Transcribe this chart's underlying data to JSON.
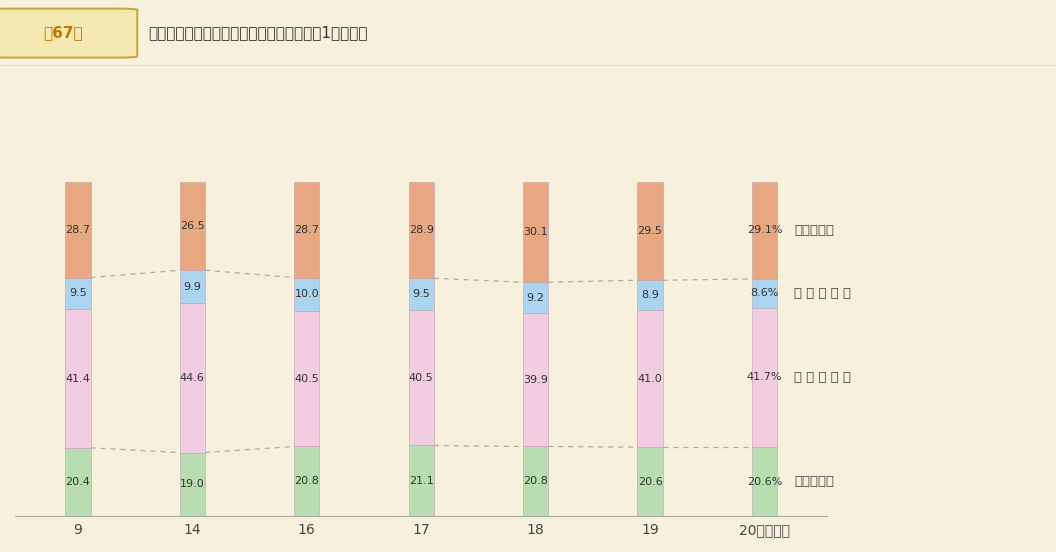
{
  "categories": [
    "9",
    "14",
    "16",
    "17",
    "18",
    "19",
    "20"
  ],
  "xlabel_suffix": "（年度）",
  "title": "普通建設事業費の財源構成比の推移（その1　総計）",
  "title_label": "第67図",
  "segments": {
    "国庫支出金": [
      20.4,
      19.0,
      20.8,
      21.1,
      20.8,
      20.6,
      20.6
    ],
    "地方債": [
      41.4,
      44.6,
      40.5,
      40.5,
      39.9,
      41.0,
      41.7
    ],
    "その他": [
      9.5,
      9.9,
      10.0,
      9.5,
      9.2,
      8.9,
      8.6
    ],
    "一般財源等": [
      28.7,
      26.5,
      28.7,
      28.9,
      30.1,
      29.5,
      29.1
    ]
  },
  "colors": {
    "国庫支出金": "#b8ddb0",
    "地方債": "#f2cce0",
    "その他": "#aad4f0",
    "一般財源等": "#e8a882"
  },
  "legend_entries": [
    {
      "label": "一般財源等",
      "display": "一般財源等"
    },
    {
      "label": "その他",
      "display": "そ 　 の 　 他"
    },
    {
      "label": "地方債",
      "display": "地 　 方 　 債"
    },
    {
      "label": "国庫支出金",
      "display": "国庫支出金"
    }
  ],
  "background_color": "#f7f0dc",
  "header_bg": "#e8d8a0",
  "bar_width": 0.22,
  "ylim": [
    0,
    130
  ],
  "figsize": [
    10.56,
    5.52
  ],
  "dpi": 100,
  "value_labels": {
    "国庫支出金": [
      "20.4",
      "19.0",
      "20.8",
      "21.1",
      "20.8",
      "20.6",
      "20.6%"
    ],
    "地方債": [
      "41.4",
      "44.6",
      "40.5",
      "40.5",
      "39.9",
      "41.0",
      "41.7%"
    ],
    "その他": [
      "9.5",
      "9.9",
      "10.0",
      "9.5",
      "9.2",
      "8.9",
      "8.6%"
    ],
    "一般財源等": [
      "28.7",
      "26.5",
      "28.7",
      "28.9",
      "30.1",
      "29.5",
      "29.1%"
    ]
  }
}
